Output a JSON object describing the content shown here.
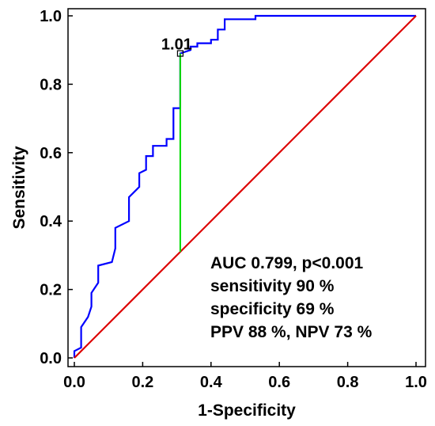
{
  "chart_data": {
    "type": "line",
    "title": "",
    "xlabel": "1-Specificity",
    "ylabel": "Sensitivity",
    "xlim": [
      0,
      1
    ],
    "ylim": [
      0,
      1
    ],
    "x_ticks": [
      "0.0",
      "0.2",
      "0.4",
      "0.6",
      "0.8",
      "1.0"
    ],
    "y_ticks": [
      "0.0",
      "0.2",
      "0.4",
      "0.6",
      "0.8",
      "1.0"
    ],
    "grid": false,
    "series": [
      {
        "kind": "roc",
        "color": "#0000ff",
        "points": [
          [
            0,
            0
          ],
          [
            0,
            0.02
          ],
          [
            0.02,
            0.03
          ],
          [
            0.02,
            0.09
          ],
          [
            0.04,
            0.12
          ],
          [
            0.05,
            0.15
          ],
          [
            0.05,
            0.19
          ],
          [
            0.07,
            0.22
          ],
          [
            0.07,
            0.27
          ],
          [
            0.11,
            0.28
          ],
          [
            0.12,
            0.32
          ],
          [
            0.12,
            0.38
          ],
          [
            0.16,
            0.4
          ],
          [
            0.16,
            0.47
          ],
          [
            0.18,
            0.49
          ],
          [
            0.19,
            0.5
          ],
          [
            0.19,
            0.54
          ],
          [
            0.21,
            0.55
          ],
          [
            0.21,
            0.59
          ],
          [
            0.23,
            0.59
          ],
          [
            0.23,
            0.62
          ],
          [
            0.27,
            0.62
          ],
          [
            0.27,
            0.64
          ],
          [
            0.29,
            0.64
          ],
          [
            0.29,
            0.73
          ],
          [
            0.31,
            0.73
          ],
          [
            0.31,
            0.89
          ],
          [
            0.34,
            0.9
          ],
          [
            0.34,
            0.91
          ],
          [
            0.36,
            0.91
          ],
          [
            0.36,
            0.92
          ],
          [
            0.4,
            0.92
          ],
          [
            0.4,
            0.93
          ],
          [
            0.42,
            0.93
          ],
          [
            0.42,
            0.96
          ],
          [
            0.44,
            0.96
          ],
          [
            0.44,
            0.99
          ],
          [
            0.53,
            0.99
          ],
          [
            0.53,
            1.0
          ],
          [
            0.56,
            1.0
          ],
          [
            1.0,
            1.0
          ]
        ]
      },
      {
        "kind": "reference",
        "color": "#dd0000",
        "points": [
          [
            0,
            0
          ],
          [
            1,
            1
          ]
        ]
      }
    ],
    "cutoff": {
      "label": "1.01",
      "x": 0.31,
      "y": 0.89,
      "youden_line_color": "#00dd00",
      "youden_from_y": 0.31
    },
    "annotations": [
      "AUC 0.799, p<0.001",
      "sensitivity 90 %",
      "specificity 69 %",
      "PPV  88 %, NPV 73 %"
    ]
  }
}
